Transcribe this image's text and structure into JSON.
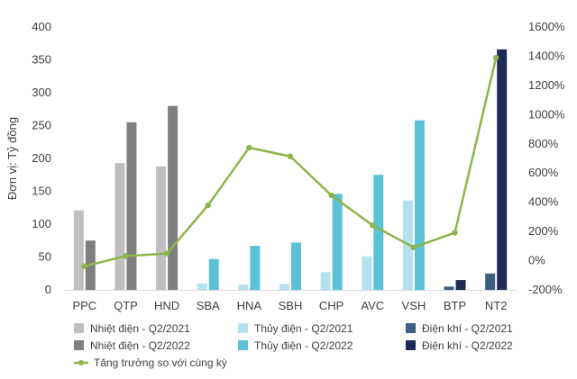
{
  "chart_data": {
    "type": "bar",
    "ylabel": "Đơn vị: Tỷ đồng",
    "ylim": [
      0,
      400
    ],
    "y_ticks": [
      "0",
      "50",
      "100",
      "150",
      "200",
      "250",
      "300",
      "350",
      "400"
    ],
    "y2lim": [
      -200,
      1600
    ],
    "y2_ticks": [
      "-200%",
      "0%",
      "200%",
      "400%",
      "600%",
      "800%",
      "1000%",
      "1200%",
      "1400%",
      "1600%"
    ],
    "grid": false,
    "legend_position": "bottom",
    "categories": [
      "PPC",
      "QTP",
      "HND",
      "SBA",
      "HNA",
      "SBH",
      "CHP",
      "AVC",
      "VSH",
      "BTP",
      "NT2"
    ],
    "series": [
      {
        "name": "Nhiệt điện - Q2/2021",
        "color": "#bfbfc2",
        "values": [
          121,
          193,
          188,
          null,
          null,
          null,
          null,
          null,
          null,
          null,
          null
        ]
      },
      {
        "name": "Nhiệt điện - Q2/2022",
        "color": "#7f7f7f",
        "values": [
          75,
          255,
          280,
          null,
          null,
          null,
          null,
          null,
          null,
          null,
          null
        ]
      },
      {
        "name": "Thủy điện - Q2/2021",
        "color": "#b4e1ee",
        "values": [
          null,
          null,
          null,
          10,
          8,
          9,
          27,
          51,
          136,
          null,
          null
        ]
      },
      {
        "name": "Thủy điện - Q2/2022",
        "color": "#5bc1d7",
        "values": [
          null,
          null,
          null,
          47,
          67,
          72,
          146,
          175,
          258,
          null,
          null
        ]
      },
      {
        "name": "Điện khí - Q2/2021",
        "color": "#3b5e82",
        "values": [
          null,
          null,
          null,
          null,
          null,
          null,
          null,
          null,
          null,
          5,
          25
        ]
      },
      {
        "name": "Điện khí - Q2/2022",
        "color": "#1f2a55",
        "values": [
          null,
          null,
          null,
          null,
          null,
          null,
          null,
          null,
          null,
          15,
          366
        ]
      },
      {
        "name": "Tăng trưởng so với cùng kỳ",
        "color": "#8db54a",
        "type": "line",
        "axis": "right",
        "values": [
          -38,
          32,
          49,
          379,
          774,
          714,
          447,
          242,
          91,
          192,
          1390
        ]
      }
    ]
  }
}
